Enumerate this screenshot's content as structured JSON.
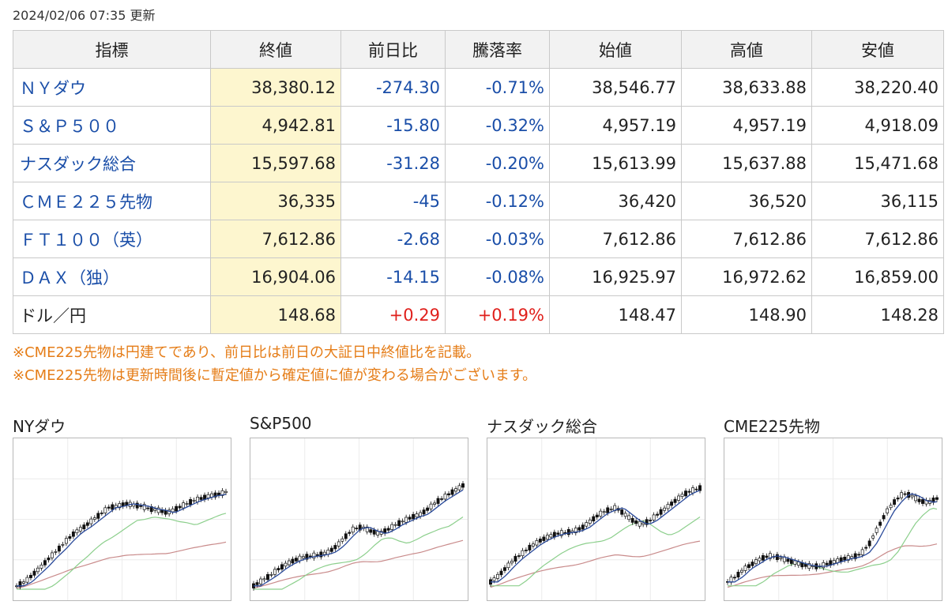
{
  "updated": "2024/02/06 07:35 更新",
  "table": {
    "headers": [
      "指標",
      "終値",
      "前日比",
      "騰落率",
      "始値",
      "高値",
      "安値"
    ],
    "rows": [
      {
        "name": "ＮＹダウ",
        "link": true,
        "close": "38,380.12",
        "change": "-274.30",
        "rate": "-0.71%",
        "open": "38,546.77",
        "high": "38,633.88",
        "low": "38,220.40",
        "dir": "neg"
      },
      {
        "name": "Ｓ＆Ｐ５００",
        "link": true,
        "close": "4,942.81",
        "change": "-15.80",
        "rate": "-0.32%",
        "open": "4,957.19",
        "high": "4,957.19",
        "low": "4,918.09",
        "dir": "neg"
      },
      {
        "name": "ナスダック総合",
        "link": true,
        "close": "15,597.68",
        "change": "-31.28",
        "rate": "-0.20%",
        "open": "15,613.99",
        "high": "15,637.88",
        "low": "15,471.68",
        "dir": "neg"
      },
      {
        "name": "ＣＭＥ２２５先物",
        "link": true,
        "close": "36,335",
        "change": "-45",
        "rate": "-0.12%",
        "open": "36,420",
        "high": "36,520",
        "low": "36,115",
        "dir": "neg"
      },
      {
        "name": "ＦＴ１００（英）",
        "link": true,
        "close": "7,612.86",
        "change": "-2.68",
        "rate": "-0.03%",
        "open": "7,612.86",
        "high": "7,612.86",
        "low": "7,612.86",
        "dir": "neg"
      },
      {
        "name": "ＤＡＸ（独）",
        "link": true,
        "close": "16,904.06",
        "change": "-14.15",
        "rate": "-0.08%",
        "open": "16,925.97",
        "high": "16,972.62",
        "low": "16,859.00",
        "dir": "neg"
      },
      {
        "name": "ドル／円",
        "link": false,
        "close": "148.68",
        "change": "+0.29",
        "rate": "+0.19%",
        "open": "148.47",
        "high": "148.90",
        "low": "148.28",
        "dir": "pos"
      }
    ]
  },
  "notes": [
    "※CME225先物は円建てであり、前日比は前日の大証日中終値比を記載。",
    "※CME225先物は更新時間後に暫定値から確定値に値が変わる場合がございます。"
  ],
  "colors": {
    "negative": "#1a4ea8",
    "positive": "#e0201c",
    "note": "#e57d18",
    "close_bg": "#fdf6cf",
    "ma_short": "#2a4a9a",
    "ma_mid": "#8ccf8c",
    "ma_long": "#c98b8b"
  },
  "charts": [
    {
      "title": "NYダウ",
      "trend": [
        0.05,
        0.08,
        0.14,
        0.2,
        0.27,
        0.33,
        0.4,
        0.46,
        0.5,
        0.55,
        0.6,
        0.65,
        0.66,
        0.68,
        0.67,
        0.66,
        0.64,
        0.63,
        0.61,
        0.64,
        0.67,
        0.7,
        0.72,
        0.74,
        0.75,
        0.77
      ]
    },
    {
      "title": "S&P500",
      "trend": [
        0.05,
        0.09,
        0.13,
        0.18,
        0.22,
        0.25,
        0.27,
        0.28,
        0.29,
        0.31,
        0.36,
        0.43,
        0.49,
        0.5,
        0.47,
        0.45,
        0.48,
        0.52,
        0.55,
        0.58,
        0.6,
        0.65,
        0.7,
        0.74,
        0.78,
        0.82
      ]
    },
    {
      "title": "ナスダック総合",
      "trend": [
        0.08,
        0.13,
        0.2,
        0.26,
        0.31,
        0.36,
        0.4,
        0.43,
        0.45,
        0.46,
        0.47,
        0.5,
        0.55,
        0.6,
        0.63,
        0.65,
        0.6,
        0.55,
        0.52,
        0.55,
        0.6,
        0.65,
        0.7,
        0.75,
        0.78,
        0.8
      ]
    },
    {
      "title": "CME225先物",
      "trend": [
        0.08,
        0.12,
        0.18,
        0.22,
        0.26,
        0.28,
        0.27,
        0.25,
        0.23,
        0.21,
        0.2,
        0.2,
        0.22,
        0.24,
        0.26,
        0.27,
        0.3,
        0.38,
        0.5,
        0.62,
        0.7,
        0.76,
        0.74,
        0.7,
        0.69,
        0.72
      ]
    }
  ]
}
